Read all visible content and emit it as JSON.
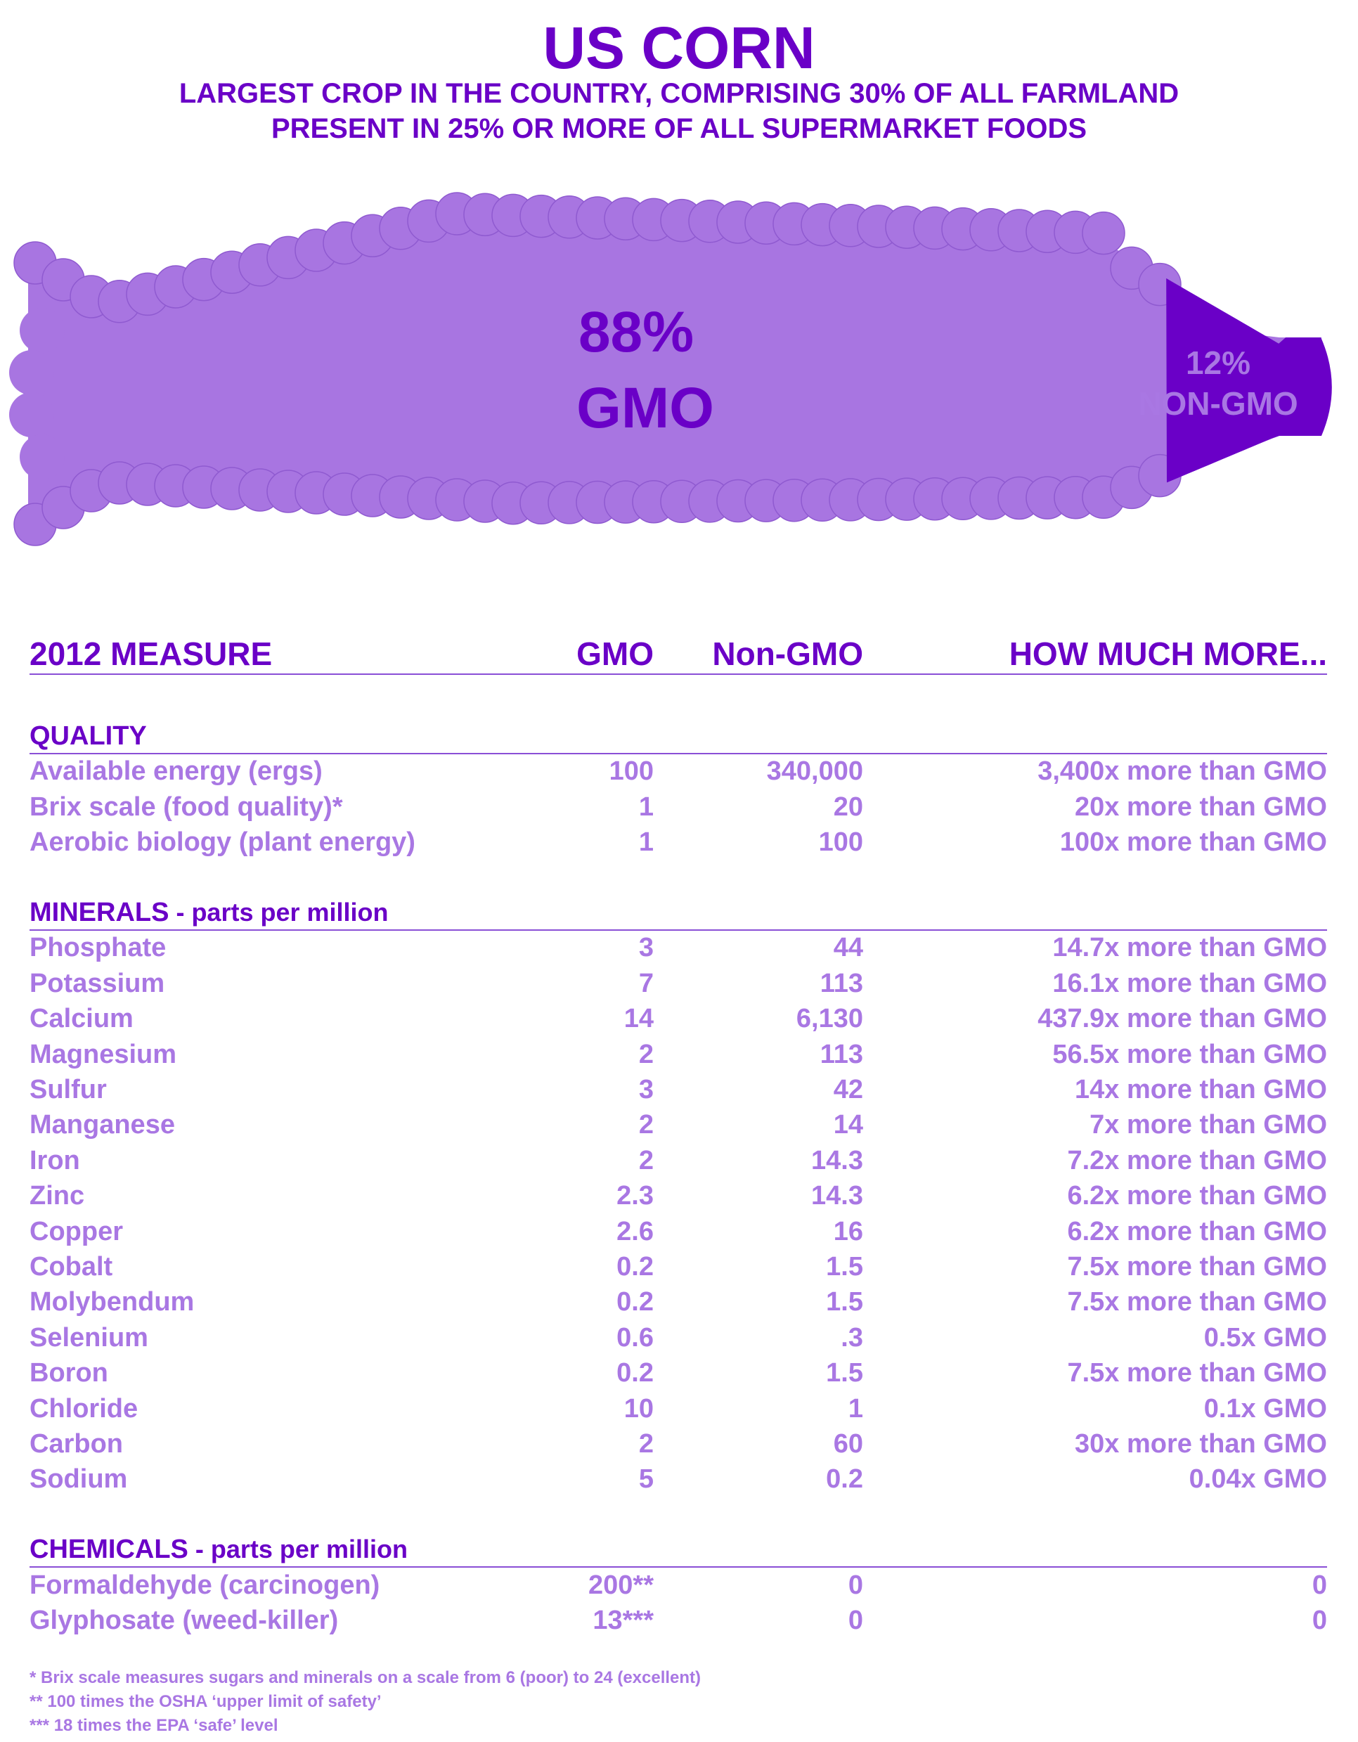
{
  "title": "US CORN",
  "subtitle_1": "LARGEST CROP IN THE COUNTRY, COMPRISING 30% OF ALL FARMLAND",
  "subtitle_2": "PRESENT IN 25% OR MORE OF ALL SUPERMARKET FOODS",
  "colors": {
    "dark_purple": "#6a00c7",
    "light_purple": "#a977e3",
    "corn_fill": "#a875e1"
  },
  "chart_data": [
    {
      "type": "bar",
      "title": "US CORN",
      "orientation": "horizontal-stacked",
      "series": [
        {
          "name": "GMO",
          "value": 88,
          "percent_label": "88%",
          "text_label": "GMO"
        },
        {
          "name": "NON-GMO",
          "value": 12,
          "percent_label": "12%",
          "text_label": "NON-GMO"
        }
      ]
    },
    {
      "type": "table",
      "columns": [
        "2012 MEASURE",
        "GMO",
        "Non-GMO",
        "HOW MUCH MORE..."
      ],
      "sections": [
        {
          "title": "QUALITY",
          "note": "",
          "rows": [
            [
              "Available energy (ergs)",
              "100",
              "340,000",
              "3,400x more than GMO"
            ],
            [
              "Brix scale (food quality)*",
              "1",
              "20",
              "20x more than GMO"
            ],
            [
              "Aerobic biology (plant energy)",
              "1",
              "100",
              "100x more than GMO"
            ]
          ]
        },
        {
          "title": "MINERALS",
          "note": " - parts per million",
          "rows": [
            [
              "Phosphate",
              "3",
              "44",
              "14.7x more than GMO"
            ],
            [
              "Potassium",
              "7",
              "113",
              "16.1x more than GMO"
            ],
            [
              "Calcium",
              "14",
              "6,130",
              "437.9x more than GMO"
            ],
            [
              "Magnesium",
              "2",
              "113",
              "56.5x more than GMO"
            ],
            [
              "Sulfur",
              "3",
              "42",
              "14x more than GMO"
            ],
            [
              "Manganese",
              "2",
              "14",
              "7x more than GMO"
            ],
            [
              "Iron",
              "2",
              "14.3",
              "7.2x more than GMO"
            ],
            [
              "Zinc",
              "2.3",
              "14.3",
              "6.2x more than GMO"
            ],
            [
              "Copper",
              "2.6",
              "16",
              "6.2x more than GMO"
            ],
            [
              "Cobalt",
              "0.2",
              "1.5",
              "7.5x more than GMO"
            ],
            [
              "Molybendum",
              "0.2",
              "1.5",
              "7.5x more than GMO"
            ],
            [
              "Selenium",
              "0.6",
              ".3",
              "0.5x GMO"
            ],
            [
              "Boron",
              "0.2",
              "1.5",
              "7.5x more than GMO"
            ],
            [
              "Chloride",
              "10",
              "1",
              "0.1x GMO"
            ],
            [
              "Carbon",
              "2",
              "60",
              "30x more than GMO"
            ],
            [
              "Sodium",
              "5",
              "0.2",
              "0.04x GMO"
            ]
          ]
        },
        {
          "title": "CHEMICALS",
          "note": " - parts per million",
          "rows": [
            [
              "Formaldehyde (carcinogen)",
              "200**",
              "0",
              "0"
            ],
            [
              "Glyphosate (weed-killer)",
              "13***",
              "0",
              "0"
            ]
          ]
        }
      ]
    }
  ],
  "footnotes": [
    "* Brix scale measures sugars and minerals on a scale from 6 (poor) to 24 (excellent)",
    "** 100 times the OSHA ‘upper limit of safety’",
    "*** 18 times the EPA ‘safe’ level"
  ]
}
